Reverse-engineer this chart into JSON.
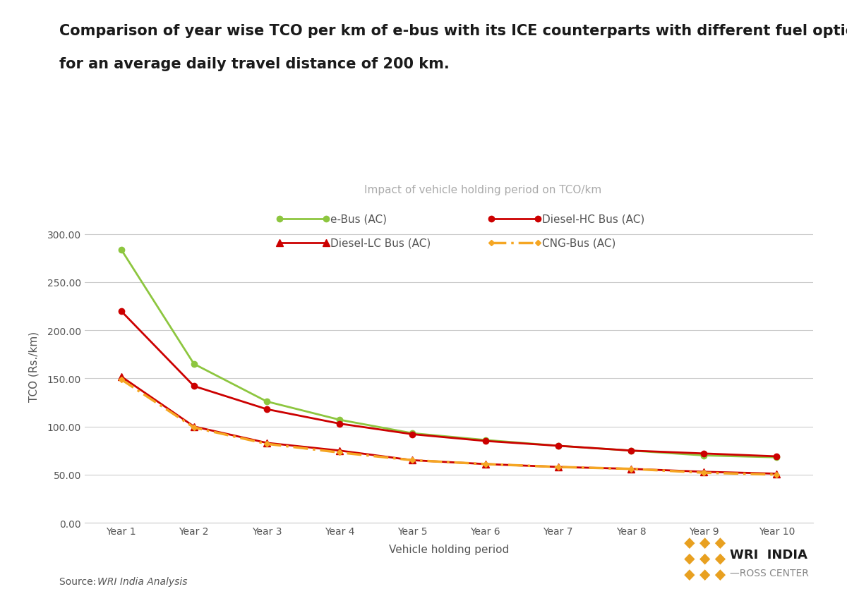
{
  "title_line1": "Comparison of year wise TCO per km of e-bus with its ICE counterparts with different fuel options",
  "title_line2": "for an average daily travel distance of 200 km.",
  "subtitle": "Impact of vehicle holding period on TCO/km",
  "xlabel": "Vehicle holding period",
  "ylabel": "TCO (Rs./km)",
  "source_normal": "Source: ",
  "source_italic": "WRI India Analysis",
  "years": [
    "Year 1",
    "Year 2",
    "Year 3",
    "Year 4",
    "Year 5",
    "Year 6",
    "Year 7",
    "Year 8",
    "Year 9",
    "Year 10"
  ],
  "ebus": [
    284,
    165,
    126,
    107,
    93,
    86,
    80,
    75,
    70,
    68
  ],
  "diesel_hc": [
    220,
    142,
    118,
    103,
    92,
    85,
    80,
    75,
    72,
    69
  ],
  "diesel_lc": [
    152,
    100,
    83,
    75,
    65,
    61,
    58,
    56,
    53,
    51
  ],
  "cng": [
    149,
    99,
    82,
    73,
    65,
    61,
    58,
    56,
    52,
    50
  ],
  "ebus_color": "#8DC63F",
  "diesel_hc_color": "#CC0000",
  "diesel_lc_color": "#CC0000",
  "cng_color": "#F5A623",
  "background_color": "#FFFFFF",
  "grid_color": "#CCCCCC",
  "text_color": "#555555",
  "title_color": "#1a1a1a",
  "ylim": [
    0,
    325
  ],
  "yticks": [
    0,
    50,
    100,
    150,
    200,
    250,
    300
  ],
  "title_fontsize": 15,
  "subtitle_fontsize": 11,
  "axis_label_fontsize": 11,
  "tick_fontsize": 10,
  "legend_fontsize": 11
}
